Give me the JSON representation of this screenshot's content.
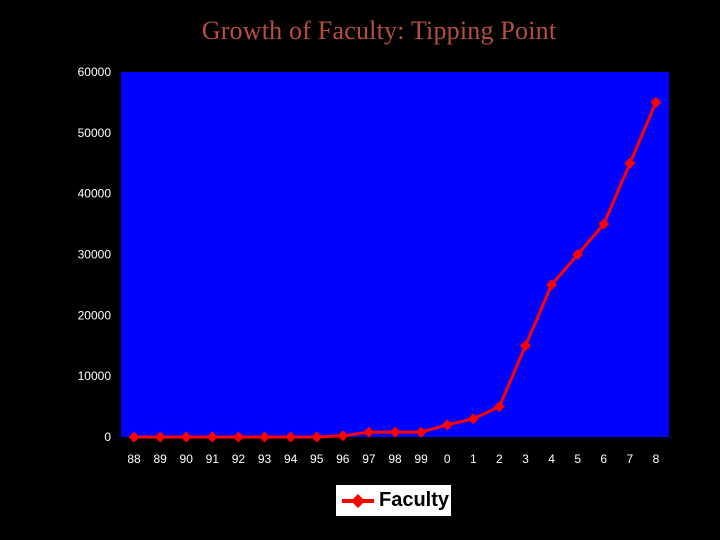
{
  "title": "Growth of Faculty: Tipping Point",
  "colors": {
    "background": "#000000",
    "plot_area": "#0000ff",
    "series": "#ff0000",
    "title": "#b5503e",
    "axis_text": "#ffffff"
  },
  "legend": {
    "label": "Faculty",
    "position": "bottom"
  },
  "chart_data": {
    "type": "line",
    "title": "Growth of Faculty: Tipping Point",
    "xlabel": "",
    "ylabel": "",
    "categories": [
      "88",
      "89",
      "90",
      "91",
      "92",
      "93",
      "94",
      "95",
      "96",
      "97",
      "98",
      "99",
      "0",
      "1",
      "2",
      "3",
      "4",
      "5",
      "6",
      "7",
      "8"
    ],
    "ylim": [
      0,
      60000
    ],
    "yticks": [
      0,
      10000,
      20000,
      30000,
      40000,
      50000,
      60000
    ],
    "grid": false,
    "series": [
      {
        "name": "Faculty",
        "marker": "diamond",
        "values": [
          0,
          0,
          0,
          0,
          0,
          0,
          0,
          0,
          200,
          800,
          800,
          800,
          2000,
          3000,
          5000,
          15000,
          25000,
          30000,
          35000,
          45000,
          55000
        ]
      }
    ]
  }
}
